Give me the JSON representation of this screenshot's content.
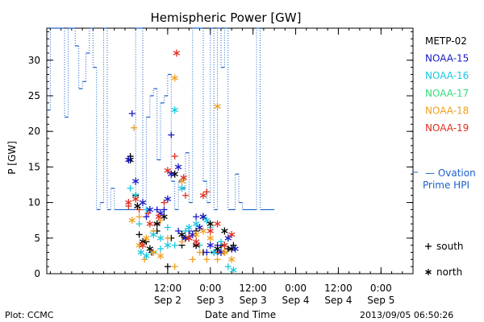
{
  "chart_data": {
    "type": "scatter",
    "title": "Hemispheric Power [GW]",
    "xlabel": "Date and Time",
    "ylabel": "P [GW]",
    "ylim": [
      0,
      34.5
    ],
    "xlim": [
      -22,
      81
    ],
    "x_unit": "hours relative to 2013-09-02 00:00 UT",
    "x_ticks": [
      {
        "x": 12,
        "label": [
          "12:00",
          "Sep 2"
        ]
      },
      {
        "x": 24,
        "label": [
          "0:00",
          "Sep 3"
        ]
      },
      {
        "x": 36,
        "label": [
          "12:00",
          "Sep 3"
        ]
      },
      {
        "x": 48,
        "label": [
          "0:00",
          "Sep 4"
        ]
      },
      {
        "x": 60,
        "label": [
          "12:00",
          "Sep 4"
        ]
      },
      {
        "x": 72,
        "label": [
          "0:00",
          "Sep 5"
        ]
      }
    ],
    "x_minor_step": 3,
    "y_ticks": [
      0,
      5,
      10,
      15,
      20,
      25,
      30
    ],
    "y_minor_step": 1,
    "legend": [
      {
        "name": "METP-02",
        "color": "#000000"
      },
      {
        "name": "NOAA-15",
        "color": "#1a1ac8"
      },
      {
        "name": "NOAA-16",
        "color": "#18c8e0"
      },
      {
        "name": "NOAA-17",
        "color": "#33dd77"
      },
      {
        "name": "NOAA-18",
        "color": "#f0a020"
      },
      {
        "name": "NOAA-19",
        "color": "#e03020"
      }
    ],
    "ovation": {
      "label": [
        "— Ovation",
        "Prime HPI"
      ],
      "color": "#1a5fc8",
      "steps": [
        [
          -22,
          23
        ],
        [
          -21,
          34.5
        ],
        [
          -18,
          34.5
        ],
        [
          -17,
          22
        ],
        [
          -16,
          34.5
        ],
        [
          -14,
          32
        ],
        [
          -13,
          26
        ],
        [
          -12,
          27
        ],
        [
          -11,
          31
        ],
        [
          -10,
          34.5
        ],
        [
          -9,
          29
        ],
        [
          -8,
          9
        ],
        [
          -7,
          10
        ],
        [
          -6,
          34.5
        ],
        [
          -5,
          9
        ],
        [
          -4,
          12
        ],
        [
          -3,
          9
        ],
        [
          3,
          34.5
        ],
        [
          5,
          9
        ],
        [
          6,
          22
        ],
        [
          7,
          25
        ],
        [
          8,
          26
        ],
        [
          9,
          16
        ],
        [
          10,
          24
        ],
        [
          11,
          25
        ],
        [
          12,
          28
        ],
        [
          13,
          13
        ],
        [
          14,
          9
        ],
        [
          15,
          13
        ],
        [
          16,
          12
        ],
        [
          17,
          17
        ],
        [
          18,
          10
        ],
        [
          19,
          34.5
        ],
        [
          22,
          13
        ],
        [
          23,
          10
        ],
        [
          24,
          34.5
        ],
        [
          25,
          9
        ],
        [
          26,
          34.5
        ],
        [
          27,
          29
        ],
        [
          28,
          34.5
        ],
        [
          29,
          9
        ],
        [
          31,
          14
        ],
        [
          32,
          10
        ],
        [
          33,
          9
        ],
        [
          37,
          34.5
        ],
        [
          38,
          9
        ],
        [
          42,
          9
        ]
      ]
    },
    "south": [
      {
        "sat": "METP-02",
        "points": [
          [
            1.5,
            16.5
          ],
          [
            3,
            11
          ],
          [
            4,
            5.5
          ],
          [
            6,
            4.5
          ],
          [
            7.5,
            3
          ],
          [
            9,
            6
          ],
          [
            12,
            1
          ],
          [
            13,
            5
          ],
          [
            16,
            4
          ],
          [
            17,
            5
          ],
          [
            20,
            6
          ],
          [
            22,
            3
          ],
          [
            25,
            3
          ],
          [
            27,
            4
          ],
          [
            29,
            3.5
          ],
          [
            30.5,
            4
          ]
        ]
      },
      {
        "sat": "NOAA-15",
        "points": [
          [
            2,
            22.5
          ],
          [
            6,
            8
          ],
          [
            9,
            9
          ],
          [
            11,
            9
          ],
          [
            13,
            19.5
          ],
          [
            15,
            6
          ],
          [
            18,
            6
          ],
          [
            20,
            8
          ],
          [
            23,
            3
          ],
          [
            26,
            4
          ]
        ]
      },
      {
        "sat": "NOAA-16",
        "points": [
          [
            1.5,
            12
          ],
          [
            4,
            7
          ],
          [
            6,
            9
          ],
          [
            8,
            3
          ],
          [
            10,
            3.5
          ],
          [
            12,
            6.5
          ],
          [
            14,
            4
          ],
          [
            17,
            6
          ],
          [
            21,
            4
          ],
          [
            24,
            6.5
          ],
          [
            27,
            4.5
          ],
          [
            29,
            1
          ]
        ]
      },
      {
        "sat": "NOAA-17",
        "points": []
      },
      {
        "sat": "NOAA-18",
        "points": [
          [
            2.5,
            20.5
          ],
          [
            4,
            8
          ],
          [
            5.5,
            2
          ],
          [
            8,
            6
          ],
          [
            10,
            7.5
          ],
          [
            12,
            5
          ],
          [
            14,
            1
          ],
          [
            16,
            4.5
          ],
          [
            19,
            2
          ],
          [
            21,
            3
          ],
          [
            23,
            2
          ],
          [
            26,
            2
          ],
          [
            28,
            3
          ]
        ]
      },
      {
        "sat": "NOAA-19",
        "points": [
          [
            1,
            9.5
          ],
          [
            4,
            9
          ],
          [
            6.5,
            8.5
          ],
          [
            9,
            7
          ],
          [
            11,
            10
          ],
          [
            14,
            16.5
          ],
          [
            17,
            11
          ],
          [
            20,
            4
          ],
          [
            23,
            11.5
          ],
          [
            26,
            3
          ]
        ]
      }
    ],
    "north": [
      {
        "sat": "METP-02",
        "points": [
          [
            1.5,
            16
          ],
          [
            3.5,
            9.5
          ],
          [
            5,
            4.5
          ],
          [
            7,
            3.5
          ],
          [
            9,
            7
          ],
          [
            11,
            8
          ],
          [
            14,
            14
          ],
          [
            16,
            5.5
          ],
          [
            18,
            5
          ],
          [
            20,
            4
          ],
          [
            22,
            8
          ],
          [
            24,
            7
          ],
          [
            26,
            3.5
          ],
          [
            28,
            6
          ],
          [
            30,
            3.5
          ]
        ]
      },
      {
        "sat": "NOAA-15",
        "points": [
          [
            1,
            16
          ],
          [
            3,
            13
          ],
          [
            5,
            10
          ],
          [
            7,
            9
          ],
          [
            10,
            8.5
          ],
          [
            12,
            10.5
          ],
          [
            13,
            14
          ],
          [
            15,
            15
          ],
          [
            17,
            5
          ],
          [
            19,
            5.5
          ],
          [
            21,
            6.5
          ],
          [
            22,
            8
          ],
          [
            24,
            4
          ],
          [
            27,
            3
          ],
          [
            29,
            5
          ],
          [
            31,
            3.5
          ]
        ]
      },
      {
        "sat": "NOAA-16",
        "points": [
          [
            3,
            11
          ],
          [
            4.5,
            3
          ],
          [
            6,
            2.5
          ],
          [
            8,
            5.5
          ],
          [
            10,
            5
          ],
          [
            12,
            4
          ],
          [
            14,
            23
          ],
          [
            16,
            12
          ],
          [
            18,
            6.5
          ],
          [
            20,
            7
          ],
          [
            23,
            7.5
          ],
          [
            25,
            3
          ],
          [
            28,
            4
          ],
          [
            30.5,
            0.5
          ]
        ]
      },
      {
        "sat": "NOAA-17",
        "points": []
      },
      {
        "sat": "NOAA-18",
        "points": [
          [
            2,
            7.5
          ],
          [
            4,
            4
          ],
          [
            6,
            5
          ],
          [
            8,
            3
          ],
          [
            10,
            2.5
          ],
          [
            14,
            27.5
          ],
          [
            16,
            13
          ],
          [
            18,
            5
          ],
          [
            20,
            5.5
          ],
          [
            22,
            6
          ],
          [
            24,
            5
          ],
          [
            26,
            23.5
          ],
          [
            28,
            3
          ],
          [
            30,
            2
          ]
        ]
      },
      {
        "sat": "NOAA-19",
        "points": [
          [
            1,
            10
          ],
          [
            3,
            10.5
          ],
          [
            5,
            4
          ],
          [
            7,
            7
          ],
          [
            9.5,
            8
          ],
          [
            12,
            14.5
          ],
          [
            14.5,
            31
          ],
          [
            16.5,
            13.5
          ],
          [
            18,
            5
          ],
          [
            20,
            4.5
          ],
          [
            22,
            11
          ],
          [
            24,
            6
          ],
          [
            26,
            7
          ],
          [
            28,
            4
          ],
          [
            30,
            5.5
          ]
        ]
      }
    ],
    "marker_legend": [
      {
        "symbol": "+",
        "label": "south"
      },
      {
        "symbol": "*",
        "label": "north"
      }
    ]
  },
  "footer": {
    "plot_credit": "Plot: CCMC",
    "timestamp": "2013/09/05 06:50:26"
  }
}
